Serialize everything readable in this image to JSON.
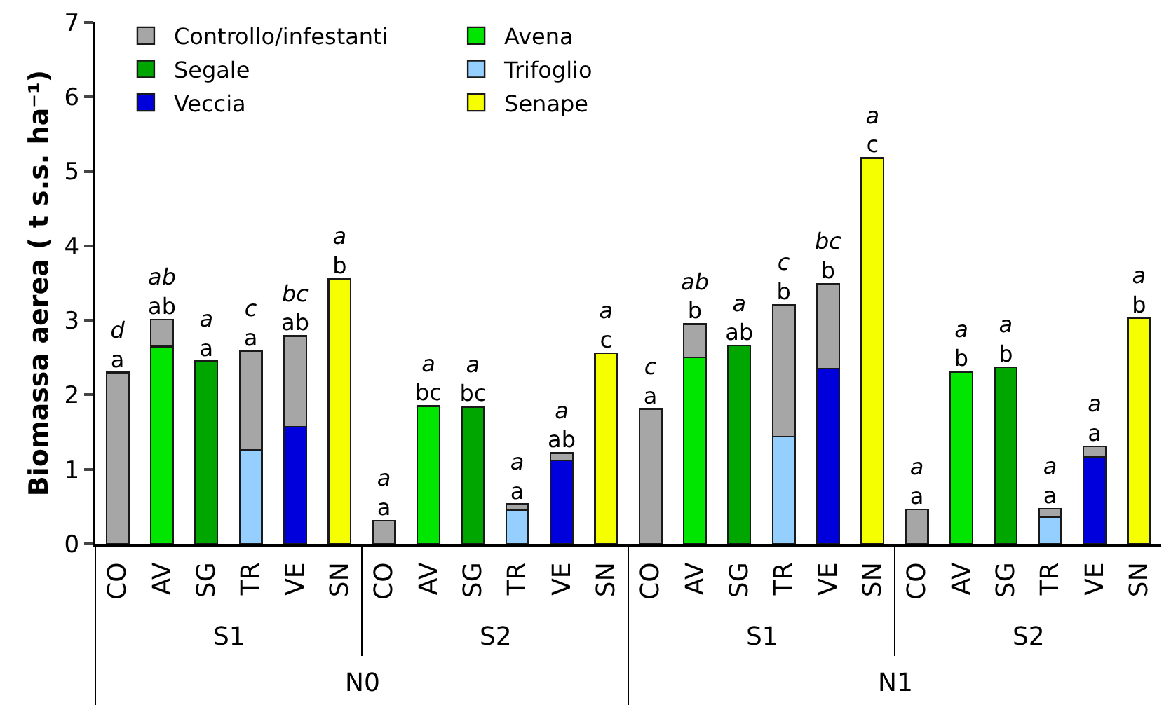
{
  "chart_data": {
    "type": "bar",
    "stacked": true,
    "ylabel": "Biomassa aerea ( t s.s. ha⁻¹)",
    "categories": [
      "CO",
      "AV",
      "SG",
      "TR",
      "VE",
      "SN",
      "CO",
      "AV",
      "SG",
      "TR",
      "VE",
      "SN",
      "CO",
      "AV",
      "SG",
      "TR",
      "VE",
      "SN",
      "CO",
      "AV",
      "SG",
      "TR",
      "VE",
      "SN"
    ],
    "annotations": [
      "S1",
      "S2",
      "S1",
      "S2",
      "N0",
      "N1"
    ],
    "ylim": [
      0,
      7
    ],
    "yticks": [
      0,
      1,
      2,
      3,
      4,
      5,
      6,
      7
    ],
    "legend": "top left",
    "series": [
      {
        "name": "Avena",
        "color": "#00e600",
        "values": [
          null,
          2.65,
          null,
          null,
          null,
          null,
          null,
          1.85,
          null,
          null,
          null,
          null,
          null,
          2.5,
          null,
          null,
          null,
          null,
          null,
          2.31,
          null,
          null,
          null,
          null
        ],
        "value_labels": [
          null,
          null,
          null,
          null,
          null,
          null,
          null,
          "a\nbc",
          null,
          null,
          null,
          null,
          null,
          null,
          null,
          null,
          null,
          null,
          null,
          "a\nb",
          null,
          null,
          null,
          null
        ]
      },
      {
        "name": "Segale",
        "color": "#00a600",
        "values": [
          null,
          null,
          2.45,
          null,
          null,
          null,
          null,
          null,
          1.84,
          null,
          null,
          null,
          null,
          null,
          2.66,
          null,
          null,
          null,
          null,
          null,
          2.37,
          null,
          null,
          null
        ],
        "value_labels": [
          null,
          null,
          "a\na",
          null,
          null,
          null,
          null,
          null,
          "a\nbc",
          null,
          null,
          null,
          null,
          null,
          "a\nab",
          null,
          null,
          null,
          null,
          null,
          "a\nb",
          null,
          null,
          null
        ]
      },
      {
        "name": "Trifoglio",
        "color": "#94cfff",
        "values": [
          null,
          null,
          null,
          1.26,
          null,
          null,
          null,
          null,
          null,
          0.45,
          null,
          null,
          null,
          null,
          null,
          1.44,
          null,
          null,
          null,
          null,
          null,
          0.36,
          null,
          null
        ]
      },
      {
        "name": "Veccia",
        "color": "#0000dc",
        "values": [
          null,
          null,
          null,
          null,
          1.57,
          null,
          null,
          null,
          null,
          null,
          1.12,
          null,
          null,
          null,
          null,
          null,
          2.35,
          null,
          null,
          null,
          null,
          null,
          1.17,
          null
        ]
      },
      {
        "name": "Senape",
        "color": "#f5ff00",
        "values": [
          null,
          null,
          null,
          null,
          null,
          3.56,
          null,
          null,
          null,
          null,
          null,
          2.56,
          null,
          null,
          null,
          null,
          null,
          5.18,
          null,
          null,
          null,
          null,
          null,
          3.03
        ],
        "value_labels": [
          null,
          null,
          null,
          null,
          null,
          "a\nb",
          null,
          null,
          null,
          null,
          null,
          "a\nc",
          null,
          null,
          null,
          null,
          null,
          "a\nc",
          null,
          null,
          null,
          null,
          null,
          "a\nb"
        ]
      },
      {
        "name": "Controllo/infestanti",
        "color": "#a6a6a6",
        "values": [
          2.3,
          0.36,
          null,
          1.33,
          1.22,
          null,
          0.31,
          null,
          null,
          0.08,
          0.1,
          null,
          1.81,
          0.45,
          null,
          1.77,
          1.14,
          null,
          0.46,
          null,
          null,
          0.11,
          0.14,
          null
        ],
        "value_labels": [
          "d\na",
          "ab\nab",
          null,
          "c\na",
          "bc\nab",
          null,
          "a\na",
          null,
          null,
          "a\na",
          "a\nab",
          null,
          "c\na",
          "ab\nb",
          null,
          "c\nb",
          "bc\nb",
          null,
          "a\na",
          null,
          null,
          "a\na",
          "a\na",
          null
        ]
      }
    ]
  }
}
